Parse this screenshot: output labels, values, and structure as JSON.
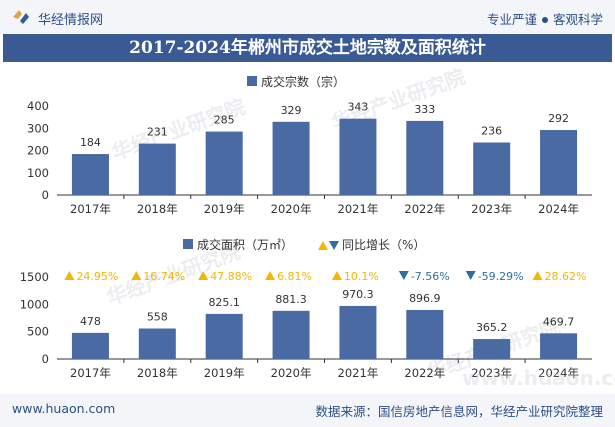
{
  "header": {
    "brand": "华经情报网",
    "slogan_left": "专业严谨",
    "slogan_right": "客观科学"
  },
  "title": "2017-2024年郴州市成交土地宗数及面积统计",
  "footer": {
    "site": "www.huaon.com",
    "source": "数据来源：国信房地产信息网，华经产业研究院整理"
  },
  "watermark": "华经产业研究院",
  "watermark_url": "www.huaon.com",
  "colors": {
    "bar": "#4a6aa3",
    "up": "#f2b705",
    "down": "#2f6f9e",
    "title_bg": "#3a5a93"
  },
  "chart_data": [
    {
      "type": "bar",
      "legend": "成交宗数（宗）",
      "categories": [
        "2017年",
        "2018年",
        "2019年",
        "2020年",
        "2021年",
        "2022年",
        "2023年",
        "2024年"
      ],
      "values": [
        184,
        231,
        285,
        329,
        343,
        333,
        236,
        292
      ],
      "labels": [
        "184",
        "231",
        "285",
        "329",
        "343",
        "333",
        "236",
        "292"
      ],
      "yticks": [
        "0",
        "100",
        "200",
        "300",
        "400"
      ],
      "ylim": [
        0,
        400
      ]
    },
    {
      "type": "bar",
      "legend": "成交面积（万㎡）",
      "legend2": "同比增长（%）",
      "categories": [
        "2017年",
        "2018年",
        "2019年",
        "2020年",
        "2021年",
        "2022年",
        "2023年",
        "2024年"
      ],
      "values": [
        478,
        558,
        825.1,
        881.3,
        970.3,
        896.9,
        365.2,
        469.7
      ],
      "labels": [
        "478",
        "558",
        "825.1",
        "881.3",
        "970.3",
        "896.9",
        "365.2",
        "469.7"
      ],
      "growth": [
        24.95,
        16.74,
        47.88,
        6.81,
        10.1,
        -7.56,
        -59.29,
        28.62
      ],
      "growth_labels": [
        "24.95%",
        "16.74%",
        "47.88%",
        "6.81%",
        "10.1%",
        "-7.56%",
        "-59.29%",
        "28.62%"
      ],
      "yticks": [
        "0",
        "500",
        "1000",
        "1500"
      ],
      "ylim": [
        0,
        1500
      ]
    }
  ]
}
